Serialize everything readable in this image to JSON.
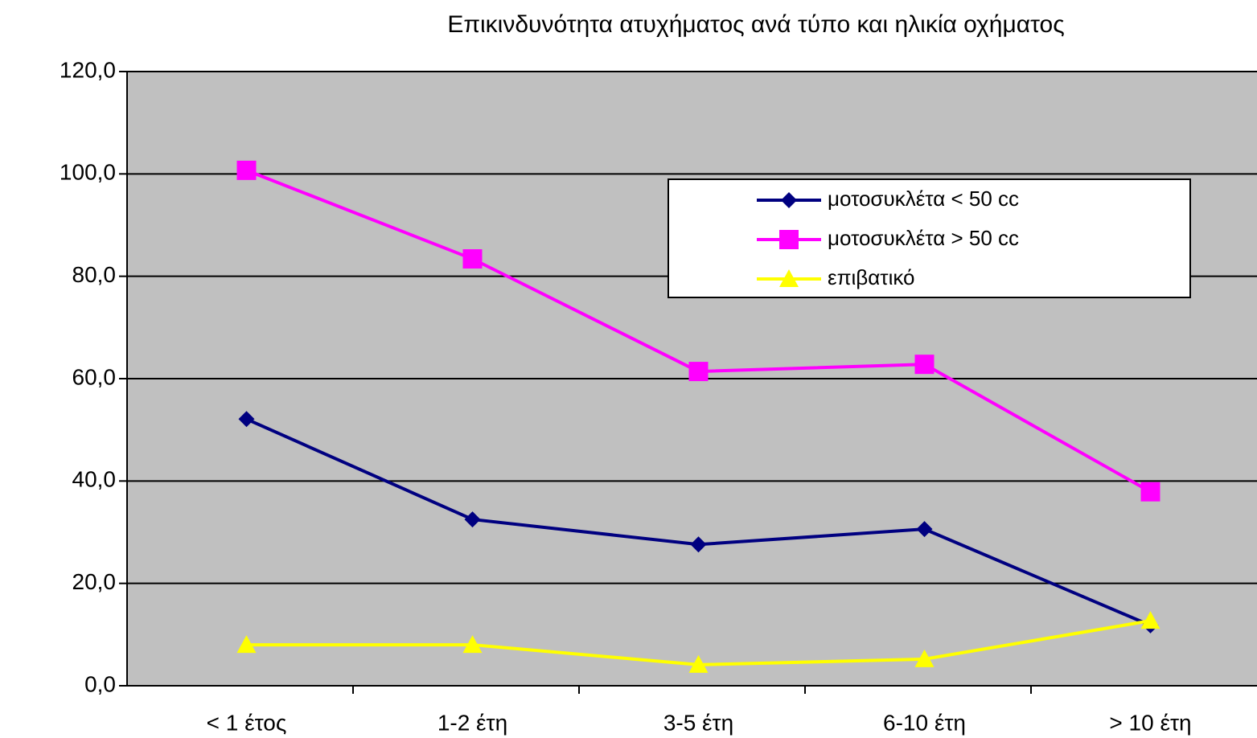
{
  "chart_data": {
    "type": "line",
    "title": "Επικινδυνότητα ατυχήματος ανά τύπο και ηλικία οχήματος",
    "categories": [
      "< 1 έτος",
      "1-2 έτη",
      "3-5 έτη",
      "6-10 έτη",
      "> 10 έτη"
    ],
    "series": [
      {
        "name": "μοτοσυκλέτα < 50 cc",
        "color": "#000080",
        "marker": "diamond",
        "values": [
          52.1,
          32.5,
          27.6,
          30.6,
          11.8
        ]
      },
      {
        "name": "μοτοσυκλέτα > 50 cc",
        "color": "#ff00ff",
        "marker": "square",
        "values": [
          100.7,
          83.4,
          61.4,
          62.8,
          37.9
        ]
      },
      {
        "name": "επιβατικό",
        "color": "#ffff00",
        "marker": "triangle",
        "values": [
          8.0,
          8.0,
          4.1,
          5.2,
          12.7
        ]
      }
    ],
    "ylim": [
      0,
      120
    ],
    "yticks": [
      {
        "value": 0,
        "label": "0,0"
      },
      {
        "value": 20,
        "label": "20,0"
      },
      {
        "value": 40,
        "label": "40,0"
      },
      {
        "value": 60,
        "label": "60,0"
      },
      {
        "value": 80,
        "label": "80,0"
      },
      {
        "value": 100,
        "label": "100,0"
      },
      {
        "value": 120,
        "label": "120,0"
      }
    ],
    "grid": true,
    "legend": "upper right"
  }
}
